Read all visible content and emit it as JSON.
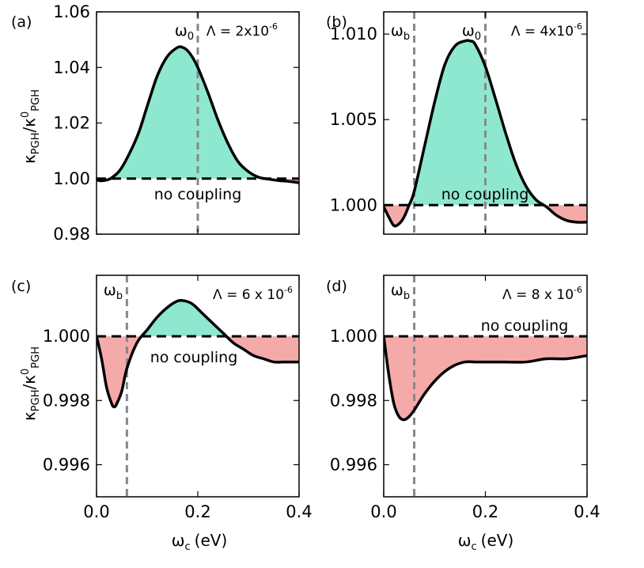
{
  "figure": {
    "ylabel_main": "κ",
    "ylabel_sub": "PGH",
    "ylabel_div": "/κ",
    "ylabel_sup": "0",
    "ylabel_sub2": "PGH",
    "xlabel_main": "ω",
    "xlabel_sub": "c",
    "xlabel_unit": "(eV)"
  },
  "colors": {
    "positive_fill": "#8ee8cf",
    "negative_fill": "#f5aaaa",
    "curve": "#000000",
    "vline": "#888888"
  },
  "chart_data": [
    {
      "type": "area",
      "panel": "(a)",
      "lambda_label": "Λ = 2x10",
      "lambda_exp": "-6",
      "baseline_label": "no coupling",
      "baseline": 1.0,
      "xlim": [
        0,
        0.4
      ],
      "ylim": [
        0.98,
        1.06
      ],
      "yticks": [
        0.98,
        1.0,
        1.02,
        1.04,
        1.06
      ],
      "ytick_labels": [
        "0.98",
        "1.00",
        "1.02",
        "1.04",
        "1.06"
      ],
      "xticks": [],
      "xtick_labels": [],
      "vlines": [
        {
          "x": 0.2,
          "label": "ω",
          "sub": "0"
        }
      ],
      "x": [
        0,
        0.01,
        0.02,
        0.03,
        0.05,
        0.08,
        0.1,
        0.12,
        0.14,
        0.16,
        0.17,
        0.18,
        0.19,
        0.2,
        0.22,
        0.24,
        0.26,
        0.28,
        0.3,
        0.32,
        0.34,
        0.36,
        0.38,
        0.4
      ],
      "y": [
        0.9995,
        0.9992,
        0.9995,
        1.0003,
        1.004,
        1.015,
        1.026,
        1.037,
        1.044,
        1.0472,
        1.0472,
        1.046,
        1.0435,
        1.04,
        1.031,
        1.021,
        1.0125,
        1.006,
        1.0025,
        1.0005,
        0.9998,
        0.9993,
        0.999,
        0.9985
      ]
    },
    {
      "type": "area",
      "panel": "(b)",
      "lambda_label": "Λ = 4x10",
      "lambda_exp": "-6",
      "baseline_label": "no coupling",
      "baseline": 1.0,
      "xlim": [
        0,
        0.4
      ],
      "ylim": [
        0.9983,
        1.0113
      ],
      "yticks": [
        1.0,
        1.005,
        1.01
      ],
      "ytick_labels": [
        "1.000",
        "1.005",
        "1.010"
      ],
      "xticks": [],
      "xtick_labels": [],
      "vlines": [
        {
          "x": 0.06,
          "label": "ω",
          "sub": "b"
        },
        {
          "x": 0.2,
          "label": "ω",
          "sub": "0"
        }
      ],
      "x": [
        0,
        0.01,
        0.02,
        0.03,
        0.04,
        0.05,
        0.06,
        0.08,
        0.1,
        0.12,
        0.14,
        0.16,
        0.17,
        0.18,
        0.2,
        0.22,
        0.24,
        0.26,
        0.28,
        0.3,
        0.32,
        0.34,
        0.36,
        0.38,
        0.4
      ],
      "y": [
        0.9999,
        0.9993,
        0.9988,
        0.9989,
        0.9993,
        1.0,
        1.0008,
        1.0034,
        1.006,
        1.0082,
        1.0093,
        1.0096,
        1.0096,
        1.0094,
        1.0081,
        1.0062,
        1.0042,
        1.0024,
        1.0011,
        1.0003,
        0.9999,
        0.9994,
        0.9991,
        0.999,
        0.999
      ]
    },
    {
      "type": "area",
      "panel": "(c)",
      "lambda_label": "Λ = 6 x 10",
      "lambda_exp": "-6",
      "baseline_label": "no coupling",
      "baseline": 1.0,
      "xlim": [
        0,
        0.4
      ],
      "ylim": [
        0.995,
        1.0019
      ],
      "yticks": [
        0.996,
        0.998,
        1.0
      ],
      "ytick_labels": [
        "0.996",
        "0.998",
        "1.000"
      ],
      "xticks": [
        0,
        0.2,
        0.4
      ],
      "xtick_labels": [
        "0.0",
        "0.2",
        "0.4"
      ],
      "vlines": [
        {
          "x": 0.06,
          "label": "ω",
          "sub": "b"
        }
      ],
      "x": [
        0,
        0.01,
        0.02,
        0.03,
        0.035,
        0.04,
        0.05,
        0.06,
        0.08,
        0.1,
        0.12,
        0.14,
        0.16,
        0.175,
        0.19,
        0.21,
        0.23,
        0.25,
        0.27,
        0.29,
        0.31,
        0.33,
        0.35,
        0.37,
        0.4
      ],
      "y": [
        1.0,
        0.9993,
        0.9984,
        0.9979,
        0.9978,
        0.9979,
        0.9983,
        0.999,
        0.9998,
        1.0002,
        1.0006,
        1.0009,
        1.0011,
        1.0011,
        1.001,
        1.0007,
        1.0004,
        1.0001,
        0.9998,
        0.9996,
        0.9994,
        0.9993,
        0.9992,
        0.9992,
        0.9992
      ]
    },
    {
      "type": "area",
      "panel": "(d)",
      "lambda_label": "Λ = 8 x 10",
      "lambda_exp": "-6",
      "baseline_label": "no coupling",
      "baseline": 1.0,
      "xlim": [
        0,
        0.4
      ],
      "ylim": [
        0.995,
        1.0019
      ],
      "yticks": [
        0.996,
        0.998,
        1.0
      ],
      "ytick_labels": [
        "0.996",
        "0.998",
        "1.000"
      ],
      "xticks": [
        0,
        0.2,
        0.4
      ],
      "xtick_labels": [
        "0.0",
        "0.2",
        "0.4"
      ],
      "vlines": [
        {
          "x": 0.06,
          "label": "ω",
          "sub": "b"
        }
      ],
      "x": [
        0,
        0.01,
        0.02,
        0.03,
        0.04,
        0.05,
        0.06,
        0.08,
        0.1,
        0.12,
        0.14,
        0.16,
        0.18,
        0.2,
        0.24,
        0.28,
        0.32,
        0.36,
        0.4
      ],
      "y": [
        1.0,
        0.9988,
        0.9979,
        0.9975,
        0.9974,
        0.9975,
        0.9977,
        0.9982,
        0.9986,
        0.9989,
        0.9991,
        0.9992,
        0.9992,
        0.9992,
        0.9992,
        0.9992,
        0.9993,
        0.9993,
        0.9994
      ]
    }
  ]
}
